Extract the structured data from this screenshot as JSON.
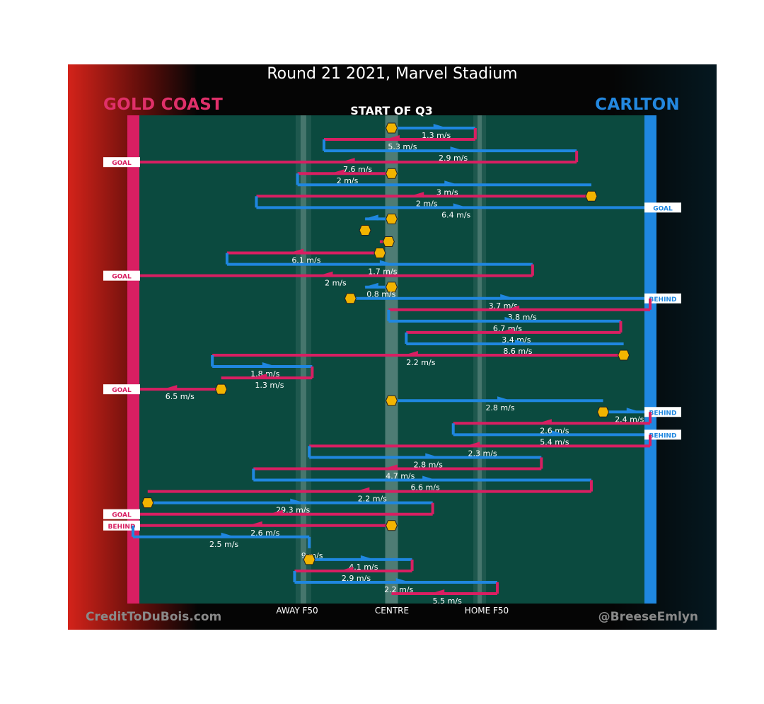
{
  "header": {
    "title": "Round 21 2021, Marvel Stadium",
    "subtitle": "START OF Q3",
    "team_left": "GOLD COAST",
    "team_right": "CARLTON",
    "credit_left": "CreditToDuBois.com",
    "credit_right": "@BreeseEmlyn"
  },
  "colors": {
    "gold_coast": "#d81f62",
    "carlton": "#1f87e0",
    "field": "#0b4a3f",
    "stoppage": "#f2b400"
  },
  "chart_data": {
    "type": "line",
    "title": "Round 21 2021, Marvel Stadium",
    "subtitle": "START OF Q3",
    "x_ticks": [
      {
        "label": "AWAY F50",
        "value": -30
      },
      {
        "label": "CENTRE",
        "value": 0
      },
      {
        "label": "HOME F50",
        "value": 30
      }
    ],
    "xlim": [
      -88,
      88
    ],
    "series": [
      {
        "name": "GOLD COAST",
        "color": "#d81f62"
      },
      {
        "name": "CARLTON",
        "color": "#1f87e0"
      }
    ],
    "chains": [
      {
        "team": "CARLTON",
        "from": 0,
        "to": 28.5,
        "speed": "1.3 m/s",
        "start_marker": true
      },
      {
        "team": "GOLD COAST",
        "from": 28.5,
        "to": -23,
        "speed": "5.3 m/s"
      },
      {
        "team": "CARLTON",
        "from": -23,
        "to": 63,
        "speed": "2.9 m/s"
      },
      {
        "team": "GOLD COAST",
        "from": 63,
        "to": -88,
        "speed": "7.6 m/s",
        "outcome": "GOAL"
      },
      {
        "team": "GOLD COAST",
        "from": 0,
        "to": -32,
        "speed": "2 m/s",
        "start_marker": true
      },
      {
        "team": "CARLTON",
        "from": -32,
        "to": 68,
        "speed": "3 m/s"
      },
      {
        "team": "GOLD COAST",
        "from": 68,
        "to": -46,
        "speed": "2 m/s",
        "start_marker": true
      },
      {
        "team": "CARLTON",
        "from": -46,
        "to": 88,
        "speed": "6.4 m/s",
        "outcome": "GOAL"
      },
      {
        "team": "CARLTON",
        "from": 0,
        "to": -9,
        "speed": "",
        "start_marker": true
      },
      {
        "team": "GOLD COAST",
        "from": -9,
        "to": -8,
        "speed": "",
        "start_marker": true
      },
      {
        "team": "GOLD COAST",
        "from": -1,
        "to": -4,
        "speed": "",
        "start_marker": true
      },
      {
        "team": "GOLD COAST",
        "from": -4,
        "to": -56,
        "speed": "6.1 m/s",
        "start_marker": true
      },
      {
        "team": "CARLTON",
        "from": -56,
        "to": 48,
        "speed": "1.7 m/s"
      },
      {
        "team": "GOLD COAST",
        "from": 48,
        "to": -88,
        "speed": "2 m/s",
        "outcome": "GOAL"
      },
      {
        "team": "CARLTON",
        "from": 0,
        "to": -9,
        "speed": "0.8 m/s",
        "start_marker": true
      },
      {
        "team": "CARLTON",
        "from": -14,
        "to": 88,
        "speed": "3.7 m/s",
        "start_marker": true,
        "outcome": "BEHIND"
      },
      {
        "team": "GOLD COAST",
        "from": 88,
        "to": -1,
        "speed": "3.8 m/s"
      },
      {
        "team": "CARLTON",
        "from": -1,
        "to": 78,
        "speed": "6.7 m/s"
      },
      {
        "team": "GOLD COAST",
        "from": 78,
        "to": 5,
        "speed": "3.4 m/s"
      },
      {
        "team": "CARLTON",
        "from": 5,
        "to": 79,
        "speed": "8.6 m/s"
      },
      {
        "team": "GOLD COAST",
        "from": 79,
        "to": -61,
        "speed": "2.2 m/s",
        "start_marker": true
      },
      {
        "team": "CARLTON",
        "from": -61,
        "to": -27,
        "speed": "1.8 m/s"
      },
      {
        "team": "GOLD COAST",
        "from": -27,
        "to": -58,
        "speed": "1.3 m/s"
      },
      {
        "team": "GOLD COAST",
        "from": -58,
        "to": -88,
        "speed": "6.5 m/s",
        "start_marker": true,
        "outcome": "GOAL"
      },
      {
        "team": "CARLTON",
        "from": 0,
        "to": 72,
        "speed": "2.8 m/s",
        "start_marker": true
      },
      {
        "team": "CARLTON",
        "from": 72,
        "to": 88,
        "speed": "2.4 m/s",
        "start_marker": true,
        "outcome": "BEHIND"
      },
      {
        "team": "GOLD COAST",
        "from": 88,
        "to": 21,
        "speed": "2.6 m/s"
      },
      {
        "team": "CARLTON",
        "from": 21,
        "to": 88,
        "speed": "5.4 m/s",
        "outcome": "BEHIND"
      },
      {
        "team": "GOLD COAST",
        "from": 88,
        "to": -28,
        "speed": "2.3 m/s"
      },
      {
        "team": "CARLTON",
        "from": -28,
        "to": 51,
        "speed": "2.8 m/s"
      },
      {
        "team": "GOLD COAST",
        "from": 51,
        "to": -47,
        "speed": "4.7 m/s"
      },
      {
        "team": "CARLTON",
        "from": -47,
        "to": 68,
        "speed": "6.6 m/s"
      },
      {
        "team": "GOLD COAST",
        "from": 68,
        "to": -83,
        "speed": "2.2 m/s"
      },
      {
        "team": "CARLTON",
        "from": -83,
        "to": 14,
        "speed": "29.3 m/s",
        "start_marker": true
      },
      {
        "team": "GOLD COAST",
        "from": 14,
        "to": -88,
        "speed": "",
        "outcome": "GOAL"
      },
      {
        "team": "GOLD COAST",
        "from": 0,
        "to": -88,
        "speed": "2.6 m/s",
        "start_marker": true,
        "outcome": "BEHIND"
      },
      {
        "team": "CARLTON",
        "from": -88,
        "to": -28,
        "speed": "2.5 m/s"
      },
      {
        "team": "CARLTON",
        "from": -28,
        "to": -28,
        "speed": "9 m/s"
      },
      {
        "team": "CARLTON",
        "from": -28,
        "to": 7,
        "speed": "4.1 m/s",
        "start_marker": true
      },
      {
        "team": "GOLD COAST",
        "from": 7,
        "to": -33,
        "speed": "2.9 m/s"
      },
      {
        "team": "CARLTON",
        "from": -33,
        "to": 36,
        "speed": "2.2 m/s"
      },
      {
        "team": "GOLD COAST",
        "from": 36,
        "to": 0,
        "speed": "5.5 m/s"
      }
    ]
  }
}
